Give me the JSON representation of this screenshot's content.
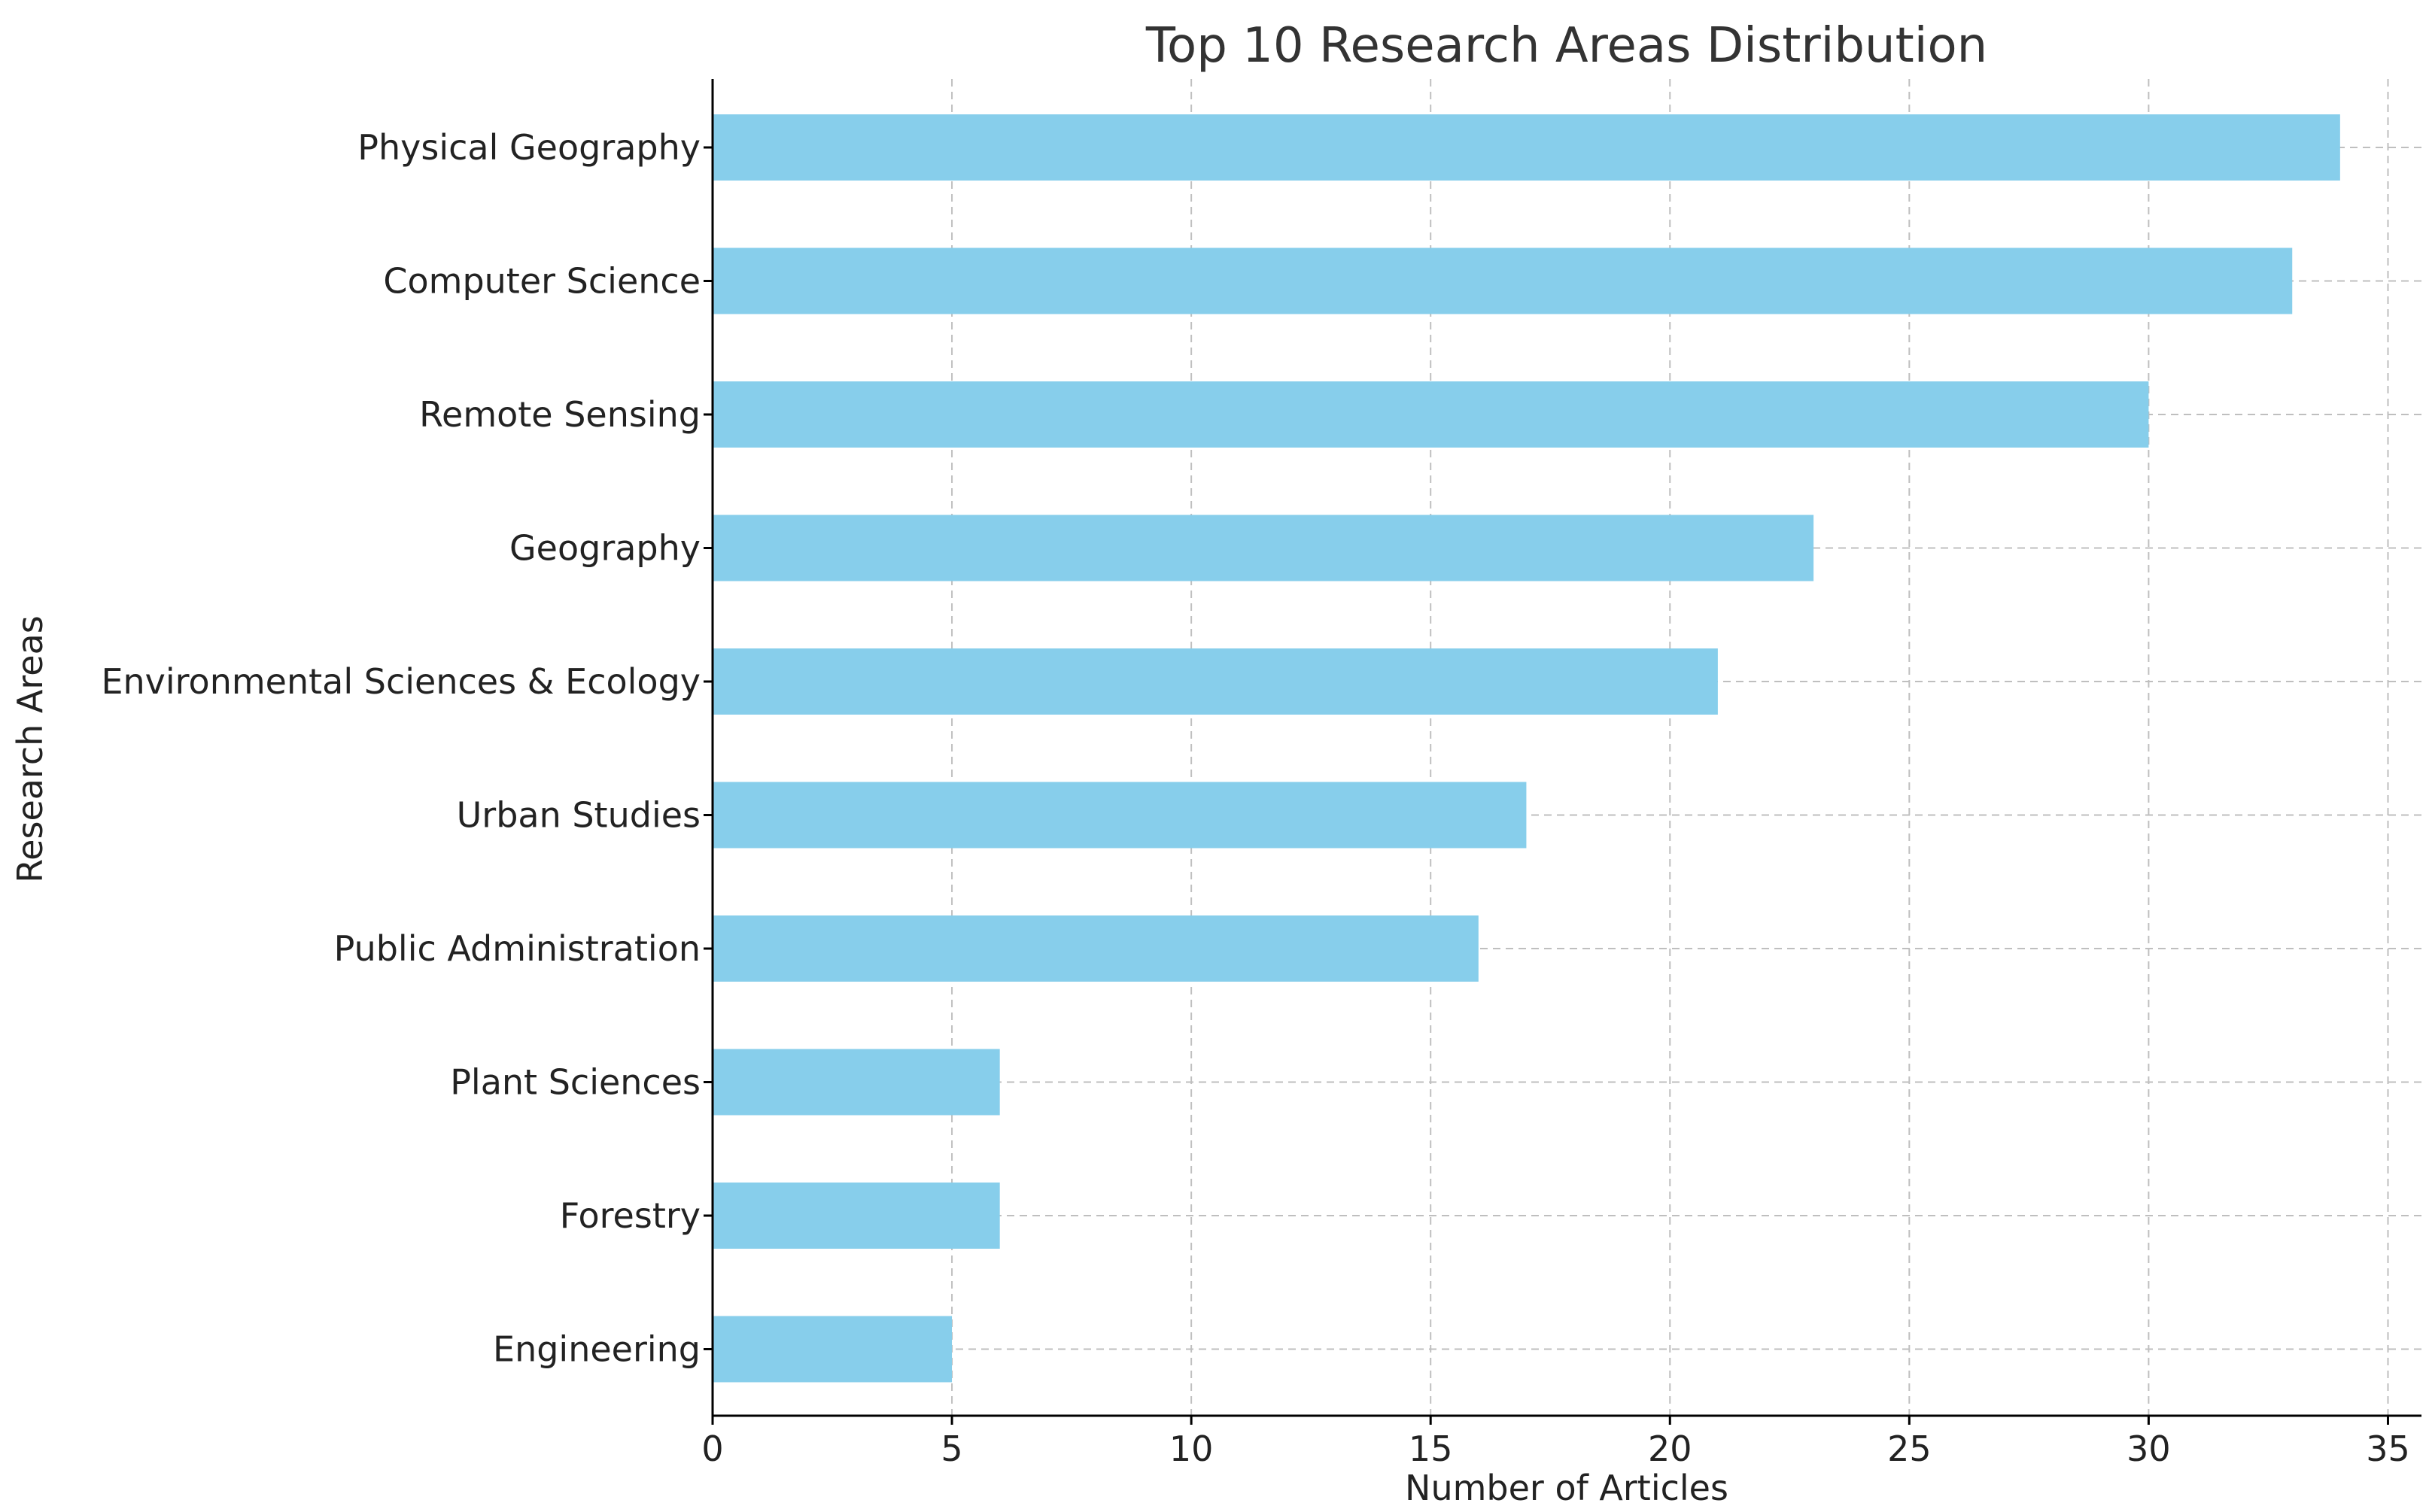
{
  "chart_data": {
    "type": "bar",
    "orientation": "horizontal",
    "title": "Top 10 Research Areas Distribution",
    "xlabel": "Number of Articles",
    "ylabel": "Research Areas",
    "categories": [
      "Physical Geography",
      "Computer Science",
      "Remote Sensing",
      "Geography",
      "Environmental Sciences & Ecology",
      "Urban Studies",
      "Public Administration",
      "Plant Sciences",
      "Forestry",
      "Engineering"
    ],
    "values": [
      34,
      33,
      30,
      23,
      21,
      17,
      16,
      6,
      6,
      5
    ],
    "xlim": [
      0,
      35.7
    ],
    "xticks": [
      0,
      5,
      10,
      15,
      20,
      25,
      30,
      35
    ],
    "xtick_labels": [
      "0",
      "5",
      "10",
      "15",
      "20",
      "25",
      "30",
      "35"
    ],
    "grid": true,
    "bar_color": "#87ceeb"
  }
}
